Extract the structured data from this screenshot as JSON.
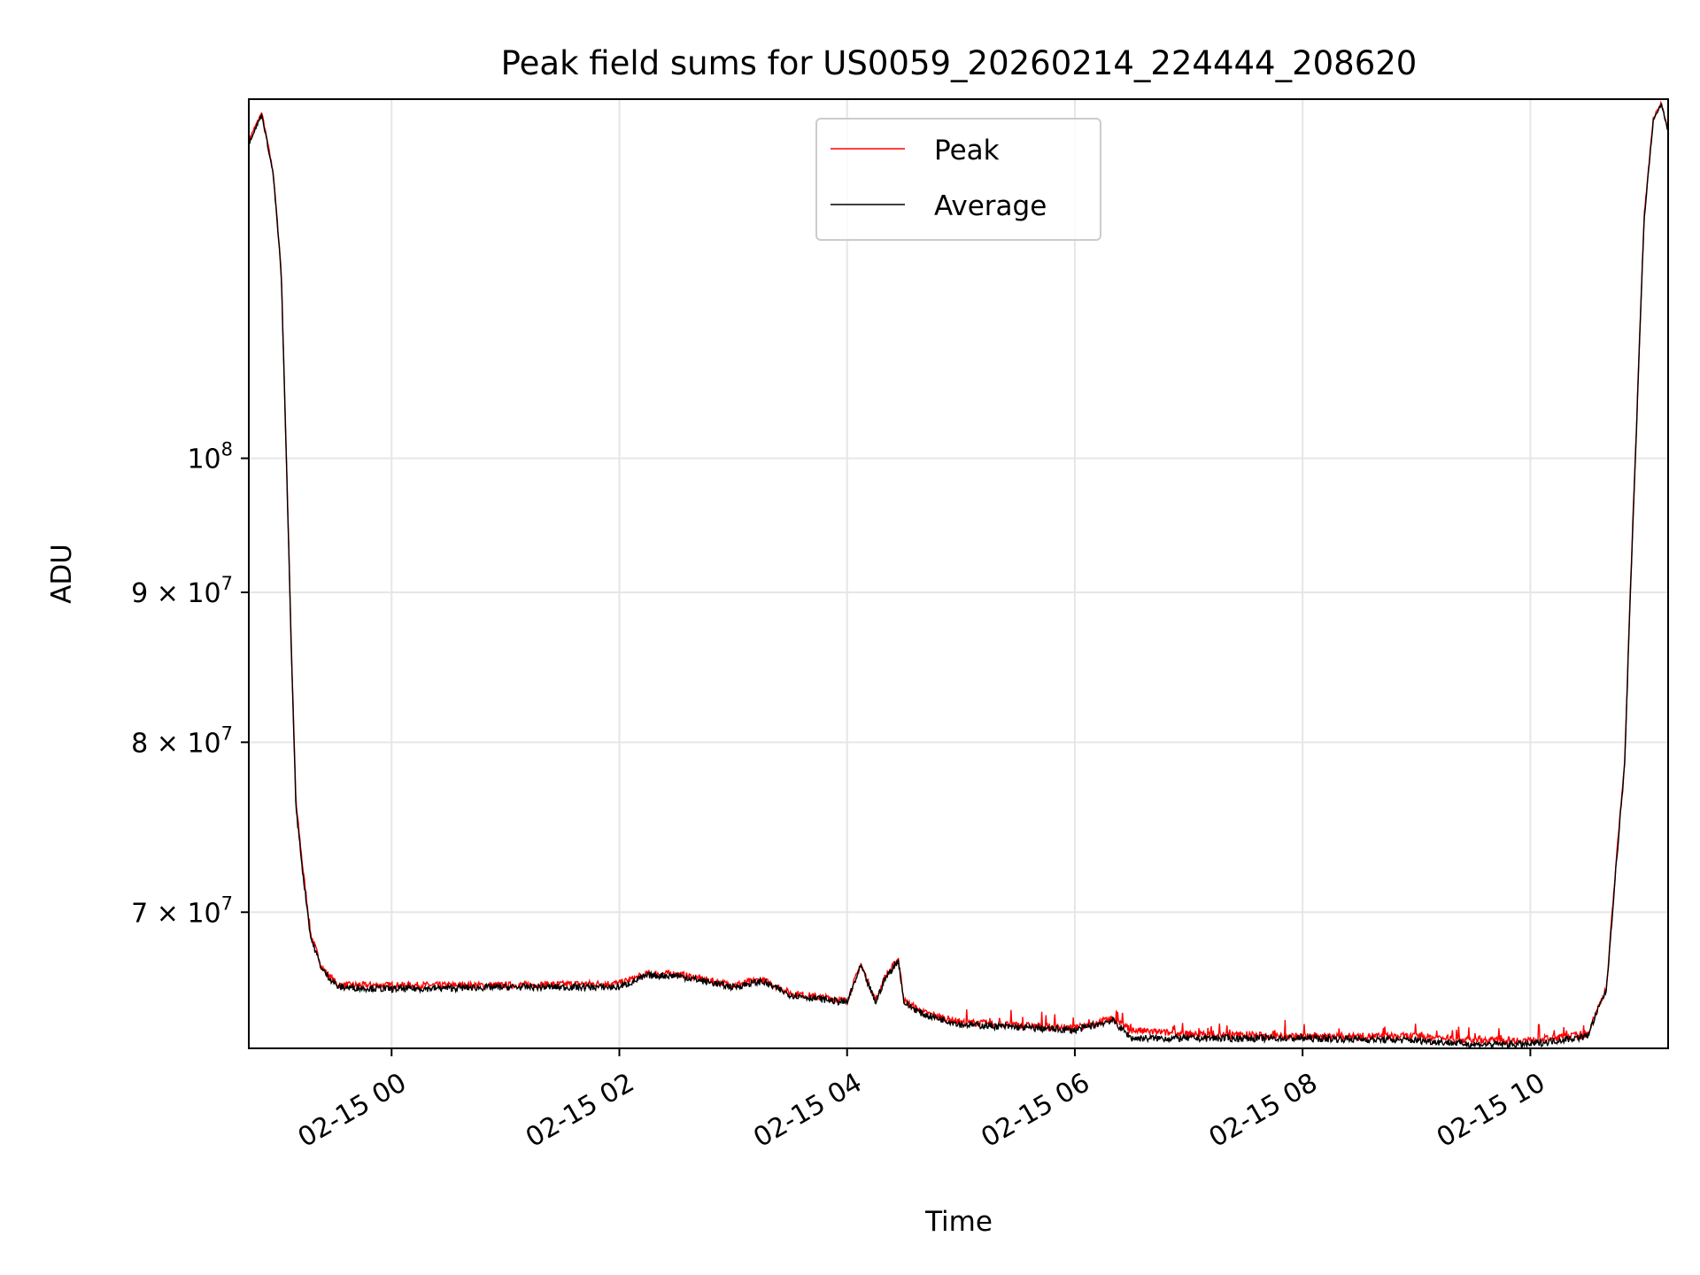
{
  "chart_data": {
    "type": "line",
    "title": "Peak field sums for US0059_20260214_224444_208620",
    "xlabel": "Time",
    "ylabel": "ADU",
    "yscale": "log",
    "x_unit": "hours from 02-15 00",
    "xlim": [
      -1.254,
      11.21
    ],
    "ylim": [
      62900000,
      132600000
    ],
    "grid": true,
    "legend_position": "top-center",
    "xticks": [
      {
        "value": 0,
        "label": "02-15 00"
      },
      {
        "value": 2,
        "label": "02-15 02"
      },
      {
        "value": 4,
        "label": "02-15 04"
      },
      {
        "value": 6,
        "label": "02-15 06"
      },
      {
        "value": 8,
        "label": "02-15 08"
      },
      {
        "value": 10,
        "label": "02-15 10"
      }
    ],
    "yticks": [
      {
        "value": 100000000,
        "mantissa": "",
        "base": "10",
        "exp": "8"
      },
      {
        "value": 90000000,
        "mantissa": "9",
        "base": "10",
        "exp": "7"
      },
      {
        "value": 80000000,
        "mantissa": "8",
        "base": "10",
        "exp": "7"
      },
      {
        "value": 70000000,
        "mantissa": "7",
        "base": "10",
        "exp": "7"
      }
    ],
    "value_unit_multiplier": 10000000,
    "series": [
      {
        "name": "Peak",
        "color": "#ff0000",
        "x": [
          -1.25,
          -1.14,
          -1.04,
          -0.97,
          -0.93,
          -0.88,
          -0.84,
          -0.78,
          -0.71,
          -0.61,
          -0.47,
          0,
          1,
          2,
          2.25,
          2.5,
          3,
          3.25,
          3.5,
          4,
          4.12,
          4.25,
          4.33,
          4.45,
          4.5,
          4.67,
          5,
          6,
          6.33,
          6.5,
          7,
          8,
          9,
          9.5,
          10,
          10.5,
          10.67,
          10.83,
          10.93,
          11,
          11.08,
          11.15,
          11.21
        ],
        "values": [
          12.85,
          13.12,
          12.52,
          11.6,
          10.2,
          8.6,
          7.63,
          7.25,
          6.88,
          6.7,
          6.61,
          6.61,
          6.61,
          6.62,
          6.67,
          6.67,
          6.61,
          6.64,
          6.57,
          6.53,
          6.72,
          6.53,
          6.65,
          6.75,
          6.53,
          6.47,
          6.42,
          6.39,
          6.44,
          6.38,
          6.36,
          6.35,
          6.35,
          6.33,
          6.33,
          6.36,
          6.6,
          7.9,
          10.2,
          12.1,
          13.06,
          13.22,
          12.95
        ]
      },
      {
        "name": "Average",
        "color": "#000000",
        "x": [
          -1.25,
          -1.14,
          -1.04,
          -0.97,
          -0.93,
          -0.88,
          -0.84,
          -0.78,
          -0.71,
          -0.61,
          -0.47,
          0,
          1,
          2,
          2.25,
          2.5,
          3,
          3.25,
          3.5,
          4,
          4.12,
          4.25,
          4.33,
          4.45,
          4.5,
          4.67,
          5,
          6,
          6.33,
          6.5,
          7,
          8,
          9,
          9.5,
          10,
          10.5,
          10.67,
          10.83,
          10.93,
          11,
          11.08,
          11.15,
          11.21
        ],
        "values": [
          12.82,
          13.1,
          12.5,
          11.57,
          10.17,
          8.57,
          7.6,
          7.22,
          6.86,
          6.69,
          6.6,
          6.59,
          6.6,
          6.6,
          6.66,
          6.66,
          6.6,
          6.63,
          6.56,
          6.52,
          6.71,
          6.52,
          6.64,
          6.74,
          6.52,
          6.46,
          6.41,
          6.38,
          6.43,
          6.34,
          6.34,
          6.34,
          6.33,
          6.31,
          6.31,
          6.35,
          6.59,
          7.87,
          10.17,
          12.07,
          13.04,
          13.21,
          12.93
        ]
      }
    ]
  }
}
